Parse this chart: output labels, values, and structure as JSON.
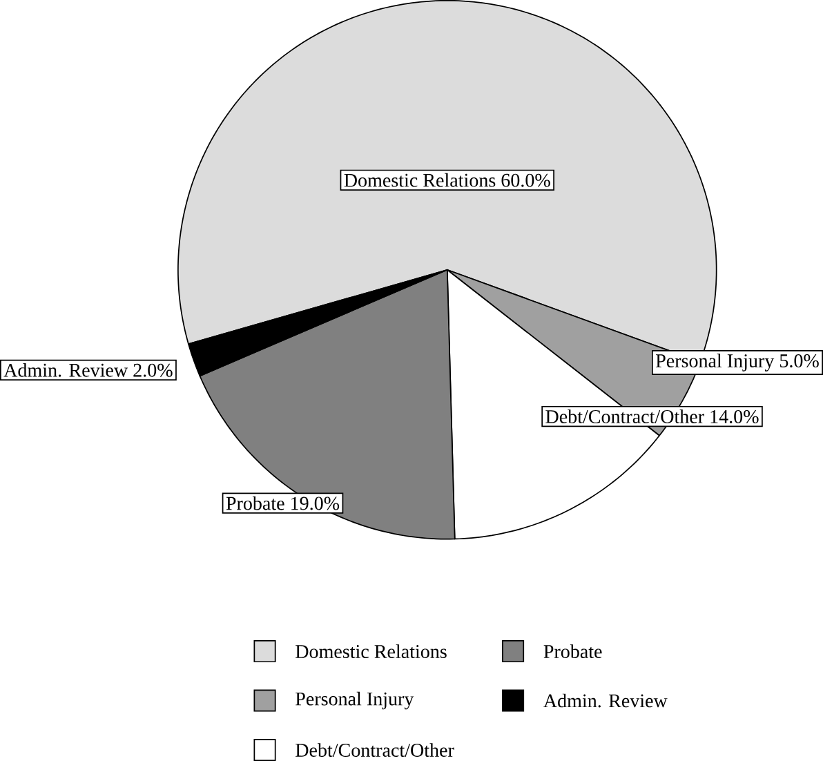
{
  "chart_data": {
    "type": "pie",
    "categories": [
      "Domestic Relations",
      "Personal Injury",
      "Debt/Contract/Other",
      "Probate",
      "Admin. Review"
    ],
    "values": [
      60,
      5,
      14,
      19,
      2
    ],
    "value_labels": [
      "60.0%",
      "5.0%",
      "14.0%",
      "19.0%",
      "2.0%"
    ],
    "colors": [
      "#dcdcdc",
      "#a0a0a0",
      "#ffffff",
      "#808080",
      "#000000"
    ],
    "legend": "bottom"
  }
}
